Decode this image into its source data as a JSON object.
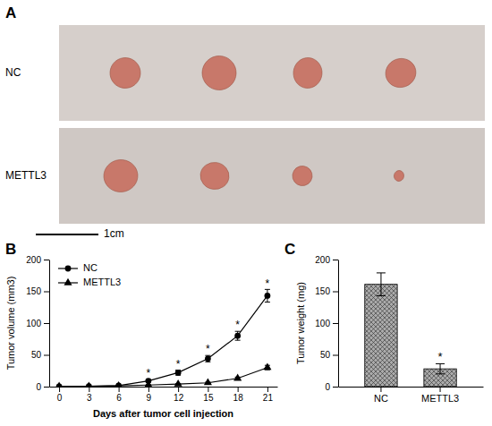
{
  "chart_data": [
    {
      "type": "image",
      "title": "A",
      "annotations": [
        "NC",
        "METTL3",
        "1cm"
      ]
    },
    {
      "type": "line",
      "title": "B",
      "xlabel": "Days after tumor cell injection",
      "ylabel": "Tumor volume (mm3)",
      "x": [
        0,
        3,
        6,
        9,
        12,
        15,
        18,
        21
      ],
      "series": [
        {
          "name": "NC",
          "color": "#000000",
          "marker": "circle",
          "values": [
            0.3,
            0.5,
            1.5,
            9.0,
            22.0,
            44.0,
            80.0,
            143.0
          ],
          "errors": [
            0.1,
            0.2,
            0.4,
            2.0,
            4.0,
            5.0,
            7.0,
            10.0
          ]
        },
        {
          "name": "METTL3",
          "color": "#000000",
          "marker": "triangle",
          "values": [
            0.3,
            0.5,
            1.2,
            2.5,
            4.0,
            6.0,
            13.0,
            30.0
          ],
          "errors": [
            0.1,
            0.2,
            0.3,
            0.5,
            0.8,
            1.0,
            2.0,
            3.5
          ]
        }
      ],
      "xlim": [
        -1,
        22
      ],
      "xticks": [
        0,
        3,
        6,
        9,
        12,
        15,
        18,
        21
      ],
      "ylim": [
        0,
        200
      ],
      "yticks": [
        0,
        50,
        100,
        150,
        200
      ],
      "legend": "upper left",
      "annotations": [
        {
          "text": "*",
          "x": 9,
          "y": 15.0
        },
        {
          "text": "*",
          "x": 12,
          "y": 30.0
        },
        {
          "text": "*",
          "x": 15,
          "y": 53.0
        },
        {
          "text": "*",
          "x": 18,
          "y": 91.0
        },
        {
          "text": "*",
          "x": 21,
          "y": 157.0
        }
      ]
    },
    {
      "type": "bar",
      "title": "C",
      "ylabel": "Tumor weight (mg)",
      "categories": [
        "NC",
        "METTL3"
      ],
      "values": [
        161.0,
        28.0
      ],
      "errors": [
        18.0,
        8.0
      ],
      "color": "#aaaaaa",
      "ylim": [
        0,
        200
      ],
      "yticks": [
        0,
        50,
        100,
        150,
        200
      ],
      "annotations": [
        {
          "text": "*",
          "x": "METTL3",
          "y": 41.0
        }
      ]
    }
  ]
}
